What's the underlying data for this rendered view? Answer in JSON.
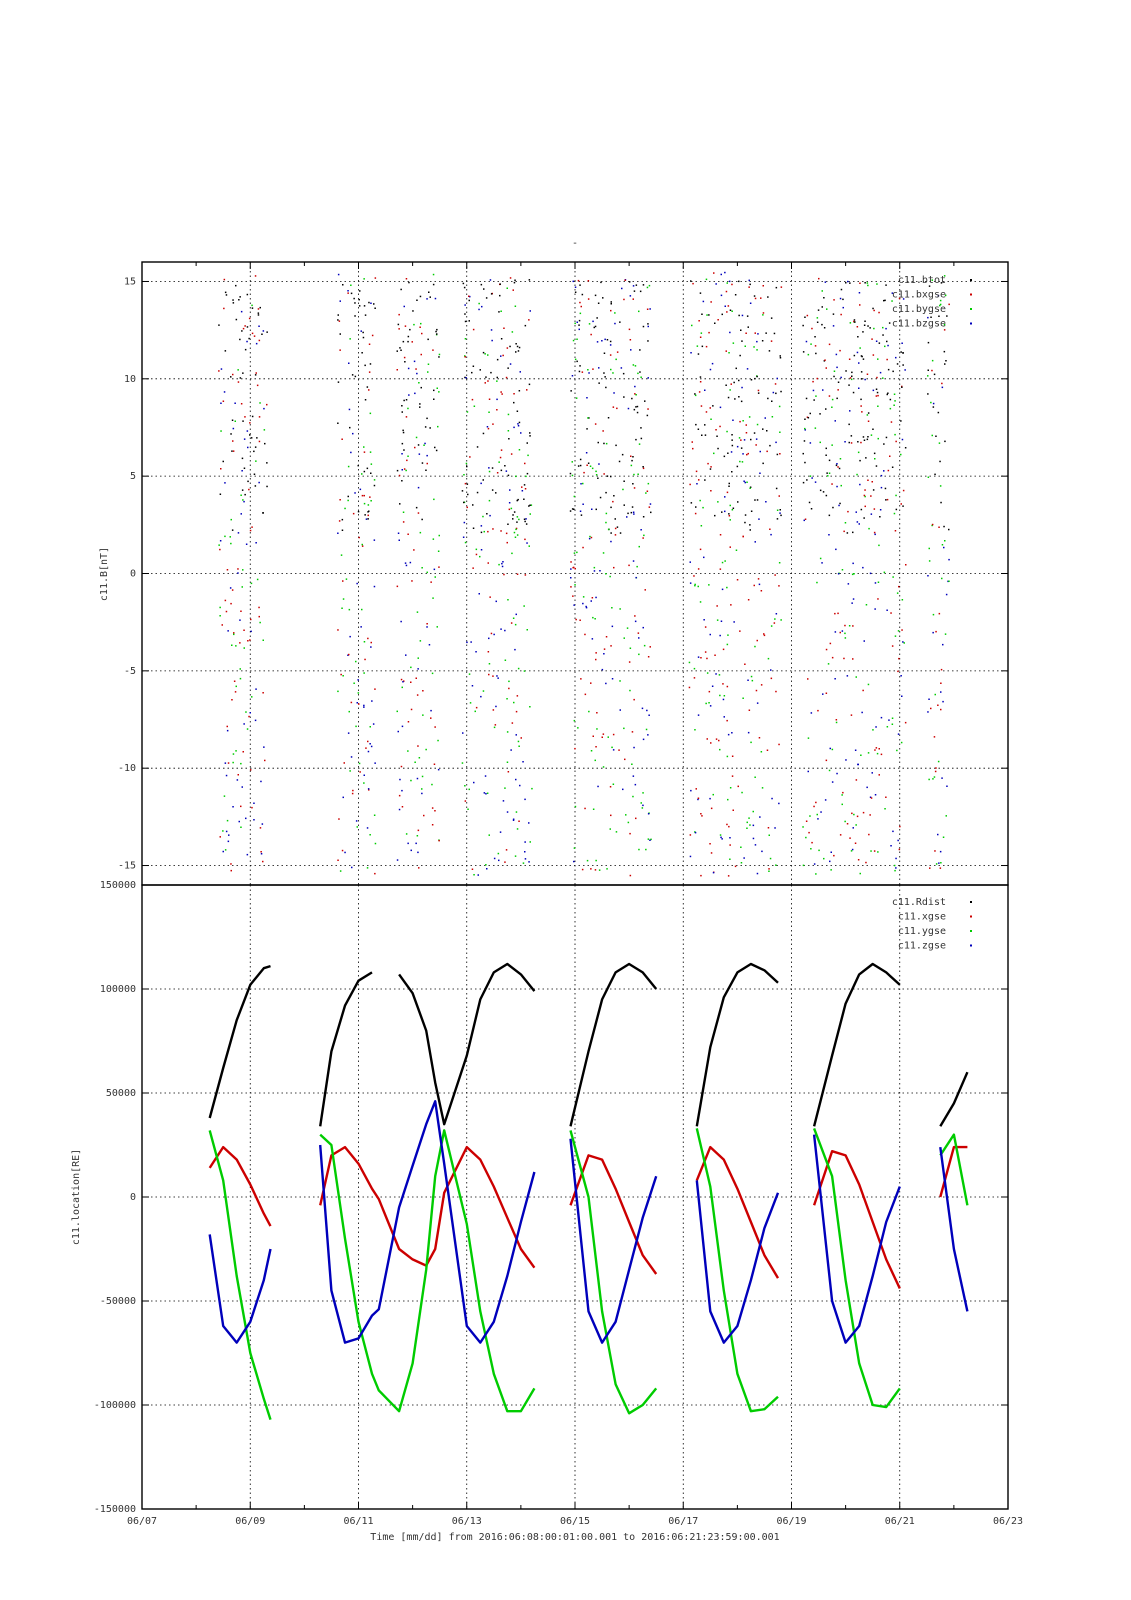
{
  "title": "-",
  "xlabel": "Time [mm/dd]  from 2016:06:08:00:01:00.001  to  2016:06:21:23:59:00.001",
  "chart_data": [
    {
      "type": "scatter",
      "ylabel": "c11.B[nT]",
      "ylim": [
        -16,
        16
      ],
      "yticks": [
        -15,
        -10,
        -5,
        0,
        5,
        10,
        15
      ],
      "xlim": [
        "06/07",
        "06/23"
      ],
      "xticks": [
        "06/07",
        "06/09",
        "06/11",
        "06/13",
        "06/15",
        "06/17",
        "06/19",
        "06/21",
        "06/23"
      ],
      "grid": true,
      "legend": "top-right",
      "series": [
        {
          "name": "c11.btot",
          "color": "#000000"
        },
        {
          "name": "c11.bxgse",
          "color": "#cc0000"
        },
        {
          "name": "c11.bygse",
          "color": "#00cc00"
        },
        {
          "name": "c11.bzgse",
          "color": "#0000bb"
        }
      ],
      "point_density": "approximate; thousands of scattered samples between about -15 and 15 nT within each orbit pass"
    },
    {
      "type": "line",
      "ylabel": "c11.location[RE]",
      "ylim": [
        -150000,
        150000
      ],
      "yticks": [
        -150000,
        -100000,
        -50000,
        0,
        50000,
        100000,
        150000
      ],
      "xlim": [
        "06/07",
        "06/23"
      ],
      "xticks": [
        "06/07",
        "06/09",
        "06/11",
        "06/13",
        "06/15",
        "06/17",
        "06/19",
        "06/21",
        "06/23"
      ],
      "grid": true,
      "legend": "top-right",
      "series": [
        {
          "name": "c11.Rdist",
          "color": "#000000"
        },
        {
          "name": "c11.xgse",
          "color": "#cc0000"
        },
        {
          "name": "c11.ygse",
          "color": "#00cc00"
        },
        {
          "name": "c11.zgse",
          "color": "#0000bb"
        }
      ],
      "x": [
        "06/08 06:00",
        "06/08 12:00",
        "06/08 18:00",
        "06/09 00:00",
        "06/09 06:00",
        "06/09 09:00",
        "06/10 07:00",
        "06/10 12:00",
        "06/10 18:00",
        "06/11 00:00",
        "06/11 06:00",
        "06/11 09:00",
        "06/11 18:00",
        "06/12 00:00",
        "06/12 06:00",
        "06/12 10:00",
        "06/12 14:00",
        "06/13 00:00",
        "06/13 06:00",
        "06/13 12:00",
        "06/13 18:00",
        "06/14 00:00",
        "06/14 06:00",
        "06/14 22:00",
        "06/15 06:00",
        "06/15 12:00",
        "06/15 18:00",
        "06/16 00:00",
        "06/16 06:00",
        "06/16 12:00",
        "06/17 06:00",
        "06/17 12:00",
        "06/17 18:00",
        "06/18 00:00",
        "06/18 06:00",
        "06/18 12:00",
        "06/18 18:00",
        "06/19 10:00",
        "06/19 18:00",
        "06/20 00:00",
        "06/20 06:00",
        "06/20 12:00",
        "06/20 18:00",
        "06/21 00:00",
        "06/21 18:00",
        "06/22 00:00",
        "06/22 06:00"
      ],
      "values": {
        "c11.Rdist": [
          38000,
          62000,
          85000,
          102000,
          110000,
          111000,
          34000,
          70000,
          92000,
          104000,
          108000,
          null,
          107000,
          98000,
          80000,
          55000,
          35000,
          68000,
          95000,
          108000,
          112000,
          107000,
          99000,
          34000,
          70000,
          95000,
          108000,
          112000,
          108000,
          100000,
          34000,
          72000,
          96000,
          108000,
          112000,
          109000,
          103000,
          34000,
          68000,
          93000,
          107000,
          112000,
          108000,
          102000,
          34000,
          45000,
          60000
        ],
        "c11.xgse": [
          14000,
          24000,
          18000,
          6000,
          -8000,
          -14000,
          -4000,
          20000,
          24000,
          16000,
          4000,
          -1000,
          -25000,
          -30000,
          -33000,
          -25000,
          2000,
          24000,
          18000,
          5000,
          -10000,
          -25000,
          -34000,
          -4000,
          20000,
          18000,
          4000,
          -12000,
          -28000,
          -37000,
          8000,
          24000,
          18000,
          4000,
          -12000,
          -28000,
          -39000,
          -4000,
          22000,
          20000,
          6000,
          -12000,
          -30000,
          -44000,
          0,
          24000,
          24000
        ],
        "c11.ygse": [
          32000,
          8000,
          -38000,
          -75000,
          -97000,
          -107000,
          30000,
          25000,
          -20000,
          -60000,
          -85000,
          -93000,
          -103000,
          -80000,
          -35000,
          10000,
          32000,
          -13000,
          -55000,
          -85000,
          -103000,
          -103000,
          -92000,
          32000,
          0,
          -55000,
          -90000,
          -104000,
          -100000,
          -92000,
          33000,
          5000,
          -45000,
          -85000,
          -103000,
          -102000,
          -96000,
          33000,
          10000,
          -40000,
          -80000,
          -100000,
          -101000,
          -92000,
          20000,
          30000,
          -4000
        ],
        "c11.zgse": [
          -18000,
          -62000,
          -70000,
          -60000,
          -40000,
          -25000,
          25000,
          -45000,
          -70000,
          -68000,
          -57000,
          -54000,
          -5000,
          15000,
          35000,
          46000,
          16000,
          -62000,
          -70000,
          -60000,
          -38000,
          -12000,
          12000,
          28000,
          -55000,
          -70000,
          -60000,
          -35000,
          -10000,
          10000,
          8000,
          -55000,
          -70000,
          -62000,
          -40000,
          -15000,
          2000,
          30000,
          -50000,
          -70000,
          -62000,
          -38000,
          -12000,
          5000,
          24000,
          -25000,
          -55000
        ]
      }
    }
  ]
}
